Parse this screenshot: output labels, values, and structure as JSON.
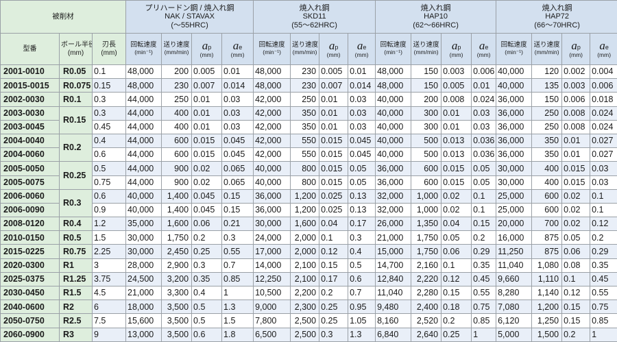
{
  "header": {
    "material_label": "被削材",
    "materials": [
      {
        "line1": "プリハードン鋼 / 焼入れ鋼",
        "line2": "NAK / STAVAX",
        "line3": "(～55HRC)"
      },
      {
        "line1": "焼入れ鋼",
        "line2": "SKD11",
        "line3": "(55～62HRC)"
      },
      {
        "line1": "焼入れ鋼",
        "line2": "HAP10",
        "line3": "(62～66HRC)"
      },
      {
        "line1": "焼入れ鋼",
        "line2": "HAP72",
        "line3": "(66～70HRC)"
      }
    ],
    "model": "型番",
    "ball_radius": {
      "line1": "ボール半径",
      "line2": "(mm)"
    },
    "flute_length": {
      "line1": "刃長",
      "line2": "(mm)"
    },
    "rpm": {
      "line1": "回転速度",
      "line2": "(min⁻¹)"
    },
    "feed": {
      "line1": "送り速度",
      "line2": "(mm/min)"
    },
    "ap": {
      "sym": "a",
      "sub": "p",
      "unit": "(mm)"
    },
    "ae": {
      "sym": "a",
      "sub": "e",
      "unit": "(mm)"
    }
  },
  "rows": [
    {
      "model": "2001-0010",
      "ball": "R0.05",
      "flute": "0.1",
      "vals": [
        "48,000",
        "200",
        "0.005",
        "0.01",
        "48,000",
        "230",
        "0.005",
        "0.01",
        "48,000",
        "150",
        "0.003",
        "0.006",
        "40,000",
        "120",
        "0.002",
        "0.004"
      ]
    },
    {
      "model": "20015-0015",
      "ball": "R0.075",
      "flute": "0.15",
      "vals": [
        "48,000",
        "230",
        "0.007",
        "0.014",
        "48,000",
        "230",
        "0.007",
        "0.014",
        "48,000",
        "150",
        "0.005",
        "0.01",
        "40,000",
        "135",
        "0.003",
        "0.006"
      ]
    },
    {
      "model": "2002-0030",
      "ball": "R0.1",
      "flute": "0.3",
      "vals": [
        "44,000",
        "250",
        "0.01",
        "0.03",
        "42,000",
        "250",
        "0.01",
        "0.03",
        "40,000",
        "200",
        "0.008",
        "0.024",
        "36,000",
        "150",
        "0.006",
        "0.018"
      ]
    },
    {
      "model": "2003-0030",
      "ball": "R0.15",
      "flute": "0.3",
      "vals": [
        "44,000",
        "400",
        "0.01",
        "0.03",
        "42,000",
        "350",
        "0.01",
        "0.03",
        "40,000",
        "300",
        "0.01",
        "0.03",
        "36,000",
        "250",
        "0.008",
        "0.024"
      ]
    },
    {
      "model": "2003-0045",
      "ball": "",
      "flute": "0.45",
      "vals": [
        "44,000",
        "400",
        "0.01",
        "0.03",
        "42,000",
        "350",
        "0.01",
        "0.03",
        "40,000",
        "300",
        "0.01",
        "0.03",
        "36,000",
        "250",
        "0.008",
        "0.024"
      ]
    },
    {
      "model": "2004-0040",
      "ball": "R0.2",
      "flute": "0.4",
      "vals": [
        "44,000",
        "600",
        "0.015",
        "0.045",
        "42,000",
        "550",
        "0.015",
        "0.045",
        "40,000",
        "500",
        "0.013",
        "0.036",
        "36,000",
        "350",
        "0.01",
        "0.027"
      ]
    },
    {
      "model": "2004-0060",
      "ball": "",
      "flute": "0.6",
      "vals": [
        "44,000",
        "600",
        "0.015",
        "0.045",
        "42,000",
        "550",
        "0.015",
        "0.045",
        "40,000",
        "500",
        "0.013",
        "0.036",
        "36,000",
        "350",
        "0.01",
        "0.027"
      ]
    },
    {
      "model": "2005-0050",
      "ball": "R0.25",
      "flute": "0.5",
      "vals": [
        "44,000",
        "900",
        "0.02",
        "0.065",
        "40,000",
        "800",
        "0.015",
        "0.05",
        "36,000",
        "600",
        "0.015",
        "0.05",
        "30,000",
        "400",
        "0.015",
        "0.03"
      ]
    },
    {
      "model": "2005-0075",
      "ball": "",
      "flute": "0.75",
      "vals": [
        "44,000",
        "900",
        "0.02",
        "0.065",
        "40,000",
        "800",
        "0.015",
        "0.05",
        "36,000",
        "600",
        "0.015",
        "0.05",
        "30,000",
        "400",
        "0.015",
        "0.03"
      ]
    },
    {
      "model": "2006-0060",
      "ball": "R0.3",
      "flute": "0.6",
      "vals": [
        "40,000",
        "1,400",
        "0.045",
        "0.15",
        "36,000",
        "1,200",
        "0.025",
        "0.13",
        "32,000",
        "1,000",
        "0.02",
        "0.1",
        "25,000",
        "600",
        "0.02",
        "0.1"
      ]
    },
    {
      "model": "2006-0090",
      "ball": "",
      "flute": "0.9",
      "vals": [
        "40,000",
        "1,400",
        "0.045",
        "0.15",
        "36,000",
        "1,200",
        "0.025",
        "0.13",
        "32,000",
        "1,000",
        "0.02",
        "0.1",
        "25,000",
        "600",
        "0.02",
        "0.1"
      ]
    },
    {
      "model": "2008-0120",
      "ball": "R0.4",
      "flute": "1.2",
      "vals": [
        "35,000",
        "1,600",
        "0.06",
        "0.21",
        "30,000",
        "1,600",
        "0.04",
        "0.17",
        "26,000",
        "1,350",
        "0.04",
        "0.15",
        "20,000",
        "700",
        "0.02",
        "0.12"
      ]
    },
    {
      "model": "2010-0150",
      "ball": "R0.5",
      "flute": "1.5",
      "vals": [
        "30,000",
        "1,750",
        "0.2",
        "0.3",
        "24,000",
        "2,000",
        "0.1",
        "0.3",
        "21,000",
        "1,750",
        "0.05",
        "0.2",
        "16,000",
        "875",
        "0.05",
        "0.2"
      ]
    },
    {
      "model": "2015-0225",
      "ball": "R0.75",
      "flute": "2.25",
      "vals": [
        "30,000",
        "2,450",
        "0.25",
        "0.55",
        "17,000",
        "2,000",
        "0.12",
        "0.4",
        "15,000",
        "1,750",
        "0.06",
        "0.29",
        "11,250",
        "875",
        "0.06",
        "0.29"
      ]
    },
    {
      "model": "2020-0300",
      "ball": "R1",
      "flute": "3",
      "vals": [
        "28,000",
        "2,900",
        "0.3",
        "0.7",
        "14,000",
        "2,100",
        "0.15",
        "0.5",
        "14,700",
        "2,160",
        "0.1",
        "0.35",
        "11,040",
        "1,080",
        "0.08",
        "0.35"
      ]
    },
    {
      "model": "2025-0375",
      "ball": "R1.25",
      "flute": "3.75",
      "vals": [
        "24,500",
        "3,200",
        "0.35",
        "0.85",
        "12,250",
        "2,100",
        "0.17",
        "0.6",
        "12,840",
        "2,220",
        "0.12",
        "0.45",
        "9,660",
        "1,110",
        "0.1",
        "0.45"
      ]
    },
    {
      "model": "2030-0450",
      "ball": "R1.5",
      "flute": "4.5",
      "vals": [
        "21,000",
        "3,300",
        "0.4",
        "1",
        "10,500",
        "2,200",
        "0.2",
        "0.7",
        "11,040",
        "2,280",
        "0.15",
        "0.55",
        "8,280",
        "1,140",
        "0.12",
        "0.55"
      ]
    },
    {
      "model": "2040-0600",
      "ball": "R2",
      "flute": "6",
      "vals": [
        "18,000",
        "3,500",
        "0.5",
        "1.3",
        "9,000",
        "2,300",
        "0.25",
        "0.95",
        "9,480",
        "2,400",
        "0.18",
        "0.75",
        "7,080",
        "1,200",
        "0.15",
        "0.75"
      ]
    },
    {
      "model": "2050-0750",
      "ball": "R2.5",
      "flute": "7.5",
      "vals": [
        "15,600",
        "3,500",
        "0.5",
        "1.5",
        "7,800",
        "2,500",
        "0.25",
        "1.05",
        "8,160",
        "2,520",
        "0.2",
        "0.85",
        "6,120",
        "1,250",
        "0.15",
        "0.85"
      ]
    },
    {
      "model": "2060-0900",
      "ball": "R3",
      "flute": "9",
      "vals": [
        "13,000",
        "3,500",
        "0.6",
        "1.8",
        "6,500",
        "2,500",
        "0.3",
        "1.3",
        "6,840",
        "2,640",
        "0.25",
        "1",
        "5,000",
        "1,500",
        "0.2",
        "1"
      ]
    }
  ]
}
